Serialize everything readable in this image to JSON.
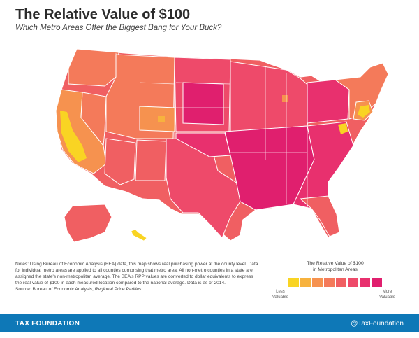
{
  "title": "The Relative Value of $100",
  "subtitle": "Which Metro Areas Offer the Biggest Bang for Your Buck?",
  "colors": {
    "scale": [
      "#f9d423",
      "#f7b23e",
      "#f6924f",
      "#f47a5a",
      "#f05f62",
      "#ee4a6a",
      "#e8306e",
      "#e01f6e"
    ],
    "border": "#ffffff",
    "footer_bg": "#0e78b7"
  },
  "notes": {
    "body": "Notes: Using Bureau of Economic Analysis (BEA) data, this map shows real purchasing power at the county level. Data for individual metro areas are applied to all counties comprising that metro area. All non-metro counties in a state are assigned the state's non-metropolitan average. The BEA's RPP values are converted to dollar equivalents to express the real value of $100 in each measured location compared to the national average. Data is as of 2014.",
    "source_label": "Source: Bureau of Economic Analysis,",
    "source_title": "Regional Price Parities."
  },
  "legend": {
    "title_line1": "The Relative Value of $100",
    "title_line2": "in Metropolitan Areas",
    "low_label_1": "Less",
    "low_label_2": "Valuable",
    "high_label_1": "More",
    "high_label_2": "Valuable"
  },
  "footer": {
    "org": "TAX FOUNDATION",
    "handle": "@TaxFoundation"
  }
}
